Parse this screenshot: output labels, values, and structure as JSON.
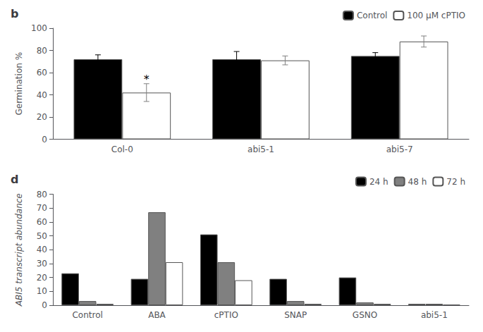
{
  "chart_data": [
    {
      "type": "bar",
      "title": "b",
      "categories": [
        "Col-0",
        "abi5-1",
        "abi5-7"
      ],
      "series": [
        {
          "name": "Control",
          "color": "#000000",
          "values": [
            72,
            72,
            75
          ],
          "errors": [
            4,
            7,
            3
          ]
        },
        {
          "name": "100 μM cPTIO",
          "color": "#ffffff",
          "values": [
            42,
            71,
            88
          ],
          "errors": [
            8,
            4,
            5
          ]
        }
      ],
      "ylabel": "Germination %",
      "ylim": [
        0,
        100
      ],
      "yticks": [
        0,
        20,
        40,
        60,
        80,
        100
      ],
      "legend": "upper right",
      "grid": false,
      "annotations": [
        {
          "text": "*",
          "category": "Col-0",
          "series": "100 μM cPTIO",
          "y": 49
        }
      ]
    },
    {
      "type": "bar",
      "title": "d",
      "categories": [
        "Control",
        "ABA",
        "cPTIO",
        "SNAP",
        "GSNO",
        "abi5-1"
      ],
      "series": [
        {
          "name": "24 h",
          "color": "#000000",
          "values": [
            23,
            19,
            51,
            19,
            20,
            1
          ]
        },
        {
          "name": "48 h",
          "color": "#808080",
          "values": [
            3,
            67,
            31,
            3,
            2,
            1
          ]
        },
        {
          "name": "72 h",
          "color": "#ffffff",
          "values": [
            1,
            31,
            18,
            1,
            1,
            0.5
          ]
        }
      ],
      "ylabel": "ABI5 transcript abundance",
      "ylim": [
        0,
        80
      ],
      "yticks": [
        0,
        10,
        20,
        30,
        40,
        50,
        60,
        70,
        80
      ],
      "legend": "upper right",
      "grid": false
    }
  ]
}
